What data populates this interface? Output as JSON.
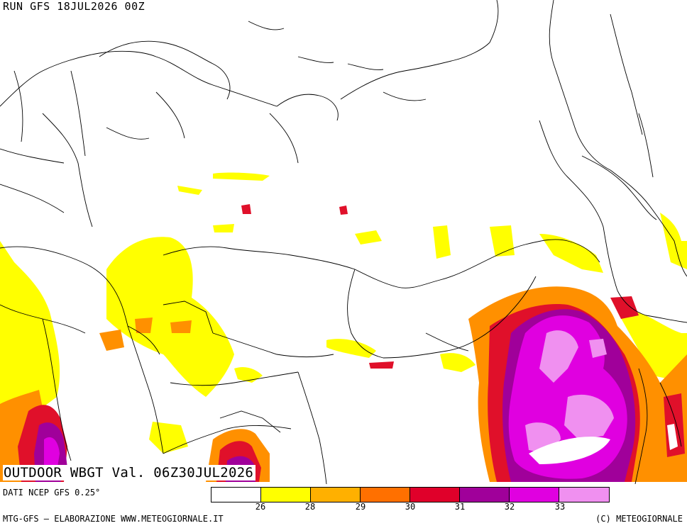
{
  "header": {
    "run_label": "RUN GFS 18JUL2026 00Z"
  },
  "map": {
    "valid_label": "OUTDOOR WBGT Val. 06Z30JUL2026",
    "source_label": "DATI NCEP GFS 0.25°"
  },
  "legend": {
    "colors": [
      "#ffffff",
      "#ffff00",
      "#ffb000",
      "#ff7000",
      "#e0002a",
      "#a0009a",
      "#e000e0",
      "#f090f0"
    ],
    "ticks": [
      "26",
      "28",
      "29",
      "30",
      "31",
      "32",
      "33"
    ]
  },
  "footer": {
    "left": "MTG-GFS — ELABORAZIONE WWW.METEOGIORNALE.IT",
    "right": "(C) METEOGIORNALE"
  }
}
